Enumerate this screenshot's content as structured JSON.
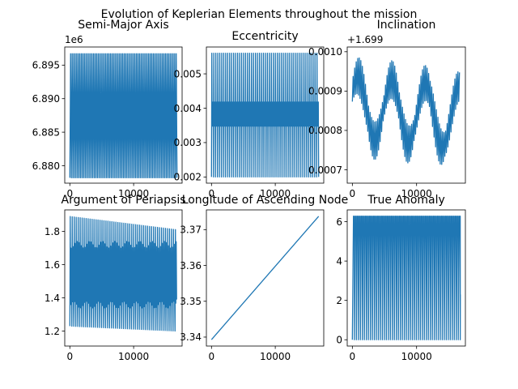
{
  "figure": {
    "suptitle": "Evolution of Keplerian Elements throughout the mission",
    "line_color": "#1f77b4"
  },
  "chart_data": [
    {
      "type": "line",
      "title": "Semi-Major Axis",
      "offset_label": "1e6",
      "xlim": [
        -800,
        17600
      ],
      "ylim": [
        6.8774,
        6.8977
      ],
      "xticks": [
        0,
        10000
      ],
      "xtick_labels": [
        "0",
        "10000"
      ],
      "yticks": [
        6.88,
        6.885,
        6.89,
        6.895
      ],
      "ytick_labels": [
        "6.880",
        "6.885",
        "6.890",
        "6.895"
      ],
      "series": [
        {
          "pattern": "osc",
          "x_end": 16800,
          "cycles": 70,
          "low": 6.8782,
          "high": 6.8967
        }
      ]
    },
    {
      "type": "line",
      "title": "Eccentricity",
      "xlim": [
        -800,
        17600
      ],
      "ylim": [
        0.00182,
        0.00578
      ],
      "xticks": [
        0,
        10000
      ],
      "xtick_labels": [
        "0",
        "10000"
      ],
      "yticks": [
        0.002,
        0.003,
        0.004,
        0.005
      ],
      "ytick_labels": [
        "0.002",
        "0.003",
        "0.004",
        "0.005"
      ],
      "series": [
        {
          "pattern": "dual_osc",
          "x_end": 16800,
          "cycles": 54,
          "low": 0.002,
          "high": 0.0056,
          "band_low": 0.00348,
          "band_high": 0.00418
        }
      ]
    },
    {
      "type": "line",
      "title": "Inclination",
      "offset_label": "+1.699",
      "xlim": [
        -800,
        17600
      ],
      "ylim": [
        0.000666,
        0.001012
      ],
      "xticks": [
        0,
        10000
      ],
      "xtick_labels": [
        "0",
        "10000"
      ],
      "yticks": [
        0.0007,
        0.0008,
        0.0009,
        0.001
      ],
      "ytick_labels": [
        "0.0007",
        "0.0008",
        "0.0009",
        "0.0010"
      ],
      "series": [
        {
          "pattern": "mod_osc",
          "x_end": 16800,
          "cycles": 70,
          "center": 0.00086,
          "amp": 4e-05,
          "mod_amp": 8e-05,
          "mod_periods": 3.2
        }
      ]
    },
    {
      "type": "line",
      "title": "Argument of Periapsis",
      "xlim": [
        -800,
        17600
      ],
      "ylim": [
        1.11,
        1.93
      ],
      "xticks": [
        0,
        10000
      ],
      "xtick_labels": [
        "0",
        "10000"
      ],
      "yticks": [
        1.2,
        1.4,
        1.6,
        1.8
      ],
      "ytick_labels": [
        "1.2",
        "1.4",
        "1.6",
        "1.8"
      ],
      "series": [
        {
          "pattern": "drift_osc",
          "x_end": 16800,
          "cycles": 54,
          "low_start": 1.23,
          "low_end": 1.2,
          "high_start": 1.89,
          "high_end": 1.81,
          "band_low": 1.36,
          "band_high": 1.72
        }
      ]
    },
    {
      "type": "line",
      "title": "Longitude of Ascending Node",
      "xlim": [
        -800,
        17600
      ],
      "ylim": [
        3.3375,
        3.3755
      ],
      "xticks": [
        0,
        10000
      ],
      "xtick_labels": [
        "0",
        "10000"
      ],
      "yticks": [
        3.34,
        3.35,
        3.36,
        3.37
      ],
      "ytick_labels": [
        "3.34",
        "3.35",
        "3.36",
        "3.37"
      ],
      "series": [
        {
          "pattern": "linear",
          "x_start": 0,
          "x_end": 16800,
          "y_start": 3.3393,
          "y_end": 3.3737
        }
      ]
    },
    {
      "type": "line",
      "title": "True Anomaly",
      "xlim": [
        -800,
        17600
      ],
      "ylim": [
        -0.32,
        6.6
      ],
      "xticks": [
        0,
        10000
      ],
      "xtick_labels": [
        "0",
        "10000"
      ],
      "yticks": [
        0,
        2,
        4,
        6
      ],
      "ytick_labels": [
        "0",
        "2",
        "4",
        "6"
      ],
      "series": [
        {
          "pattern": "sawtooth",
          "x_end": 16800,
          "cycles": 54,
          "low": 0.0,
          "high": 6.28,
          "end_value": 2.3
        }
      ]
    }
  ]
}
